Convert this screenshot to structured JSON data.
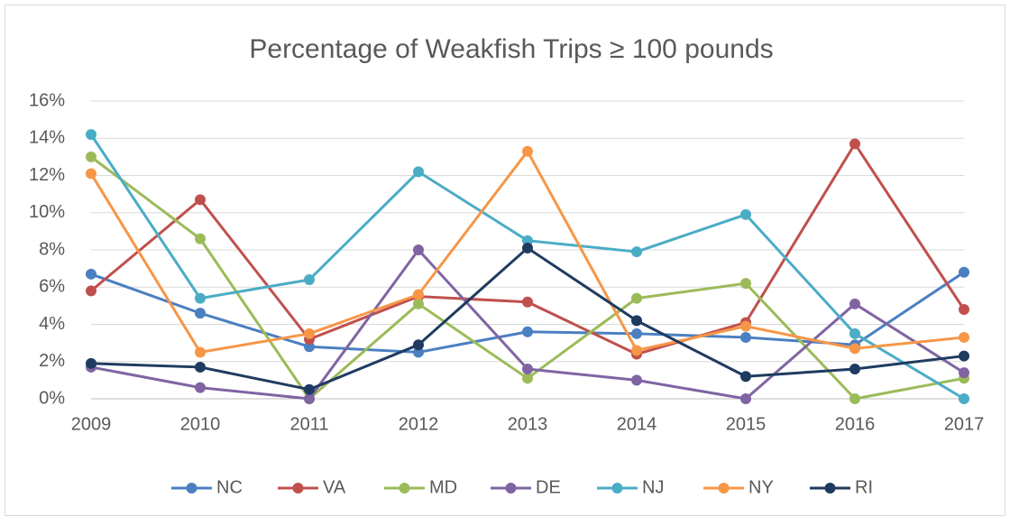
{
  "chart_data": {
    "type": "line",
    "title": "Percentage of Weakfish Trips ≥ 100 pounds",
    "categories": [
      "2009",
      "2010",
      "2011",
      "2012",
      "2013",
      "2014",
      "2015",
      "2016",
      "2017"
    ],
    "series": [
      {
        "name": "NC",
        "color": "#4a7fc1",
        "values": [
          6.7,
          4.6,
          2.8,
          2.5,
          3.6,
          3.5,
          3.3,
          2.9,
          6.8
        ]
      },
      {
        "name": "VA",
        "color": "#c0504d",
        "values": [
          5.8,
          10.7,
          3.2,
          5.5,
          5.2,
          2.4,
          4.1,
          13.7,
          4.8
        ]
      },
      {
        "name": "MD",
        "color": "#9bbb59",
        "values": [
          13.0,
          8.6,
          0,
          5.1,
          1.1,
          5.4,
          6.2,
          0,
          1.1
        ]
      },
      {
        "name": "DE",
        "color": "#8064a2",
        "values": [
          1.7,
          0.6,
          0,
          8.0,
          1.6,
          1.0,
          0,
          5.1,
          1.4
        ]
      },
      {
        "name": "NJ",
        "color": "#4bacc6",
        "values": [
          14.2,
          5.4,
          6.4,
          12.2,
          8.5,
          7.9,
          9.9,
          3.5,
          0
        ]
      },
      {
        "name": "NY",
        "color": "#f79646",
        "values": [
          12.1,
          2.5,
          3.5,
          5.6,
          13.3,
          2.6,
          3.9,
          2.7,
          3.3
        ]
      },
      {
        "name": "RI",
        "color": "#1f3b60",
        "values": [
          1.9,
          1.7,
          0.5,
          2.9,
          8.1,
          4.2,
          1.2,
          1.6,
          2.3
        ]
      }
    ],
    "ylim": [
      0,
      16
    ],
    "yticks": [
      {
        "value": 0,
        "label": "0%"
      },
      {
        "value": 2,
        "label": "2%"
      },
      {
        "value": 4,
        "label": "4%"
      },
      {
        "value": 6,
        "label": "6%"
      },
      {
        "value": 8,
        "label": "8%"
      },
      {
        "value": 10,
        "label": "10%"
      },
      {
        "value": 12,
        "label": "12%"
      },
      {
        "value": 14,
        "label": "14%"
      },
      {
        "value": 16,
        "label": "16%"
      }
    ],
    "grid": true,
    "legend": "bottom"
  }
}
